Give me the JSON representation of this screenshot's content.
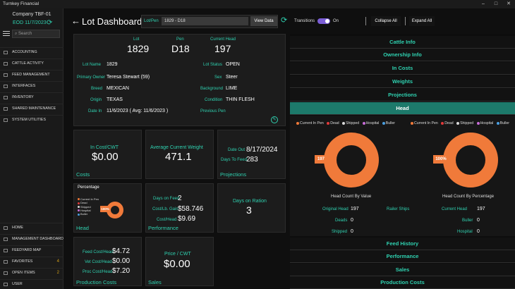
{
  "app": {
    "title": "Turnkey Financial"
  },
  "sidebar": {
    "company": "Company TBF-01",
    "eod": "EOD 11/7/2023",
    "search_placeholder": "Search",
    "items": [
      {
        "label": "ACCOUNTING"
      },
      {
        "label": "CATTLE ACTIVITY"
      },
      {
        "label": "FEED MANAGEMENT"
      },
      {
        "label": "INTERFACES"
      },
      {
        "label": "INVENTORY"
      },
      {
        "label": "SHARED MAINTENANCE"
      },
      {
        "label": "SYSTEM UTILITIES"
      }
    ],
    "bottom_items": [
      {
        "label": "HOME",
        "badge": ""
      },
      {
        "label": "MANAGEMENT DASHBOARD",
        "badge": ""
      },
      {
        "label": "FEEDYARD MAP",
        "badge": ""
      },
      {
        "label": "FAVORITES",
        "badge": "4"
      },
      {
        "label": "OPEN ITEMS",
        "badge": "2"
      },
      {
        "label": "USER",
        "badge": ""
      }
    ]
  },
  "header": {
    "title": "Lot Dashboard",
    "lotpen_label": "Lot/Pen",
    "lotpen_value": "1829 - D18",
    "view_data": "View Data",
    "transitions_label": "Transitions",
    "transitions_state": "On",
    "collapse_all": "Collapse All",
    "expand_all": "Expand All"
  },
  "lot_info": {
    "lot_label": "Lot",
    "lot": "1829",
    "pen_label": "Pen",
    "pen": "D18",
    "head_label": "Current Head",
    "head": "197",
    "fields_left": [
      {
        "label": "Lot Name",
        "value": "1829"
      },
      {
        "label": "Primary Owner",
        "value": "Teresa Stewart (59)"
      },
      {
        "label": "Breed",
        "value": "MEXICAN"
      },
      {
        "label": "Origin",
        "value": "TEXAS"
      },
      {
        "label": "Date In",
        "value": "11/6/2023  ( Avg: 11/6/2023 )"
      }
    ],
    "fields_right": [
      {
        "label": "Lot Status",
        "value": "OPEN"
      },
      {
        "label": "Sex",
        "value": "Steer"
      },
      {
        "label": "Background",
        "value": "LIME"
      },
      {
        "label": "Condition",
        "value": "THIN FLESH"
      },
      {
        "label": "Previous Pen",
        "value": ""
      }
    ]
  },
  "costs": {
    "label": "In Cost/CWT",
    "value": "$0.00",
    "title": "Costs"
  },
  "weight": {
    "label": "Average Current Weight",
    "value": "471.1"
  },
  "projections": {
    "date_out_label": "Date Out",
    "date_out": "8/17/2024",
    "dtf_label": "Days To Feed",
    "dtf": "283",
    "title": "Projections"
  },
  "head_card": {
    "title": "Head",
    "legend_title": "Percentage",
    "legend": [
      "Current In Pen",
      "Dead",
      "Shipped",
      "Hospital",
      "Buller"
    ],
    "pct": "100%"
  },
  "performance": {
    "title": "Performance",
    "rows": [
      {
        "label": "Days on Feed",
        "value": "2"
      },
      {
        "label": "Cost/Lb. Gain",
        "value": "$58.746"
      },
      {
        "label": "Cost/Head",
        "value": "$9.69"
      }
    ]
  },
  "ration": {
    "label": "Days on Ration",
    "value": "3"
  },
  "production_costs": {
    "title": "Production Costs",
    "rows": [
      {
        "label": "Feed Cost/Head",
        "value": "$4.72"
      },
      {
        "label": "Vet Cost/Head",
        "value": "$0.00"
      },
      {
        "label": "Proc Cost/Head",
        "value": "$7.20"
      }
    ]
  },
  "sales": {
    "title": "Sales",
    "label": "Price / CWT",
    "value": "$0.00"
  },
  "right_sections_top": [
    "Cattle Info",
    "Ownership Info",
    "In Costs",
    "Weights",
    "Projections"
  ],
  "head_section": {
    "title": "Head",
    "legend": [
      "Current In Pen",
      "Dead",
      "Shipped",
      "Hospital",
      "Buller"
    ],
    "chart1_tag": "197",
    "chart2_tag": "100%",
    "chart1_caption": "Head Count By Value",
    "chart2_caption": "Head Count By Percentage",
    "stats_left": [
      {
        "label": "Original Head",
        "value": "197"
      },
      {
        "label": "Deads",
        "value": "0"
      },
      {
        "label": "Shipped",
        "value": "0"
      }
    ],
    "stats_mid_label": "Railer Ships",
    "stats_right": [
      {
        "label": "Current Head",
        "value": "197"
      },
      {
        "label": "Buller",
        "value": "0"
      },
      {
        "label": "Hospital",
        "value": "0"
      }
    ]
  },
  "right_sections_bottom": [
    "Feed History",
    "Performance",
    "Sales",
    "Production Costs"
  ],
  "colors": {
    "accent": "#2fd1b0",
    "donut": "#f07a3a",
    "head_bar": "#1d7a6b",
    "toggle": "#7b5ed6"
  },
  "legend_colors": [
    "#f07a3a",
    "#e03b3b",
    "#d9d9d9",
    "#c86dd7",
    "#4a9fe0"
  ]
}
